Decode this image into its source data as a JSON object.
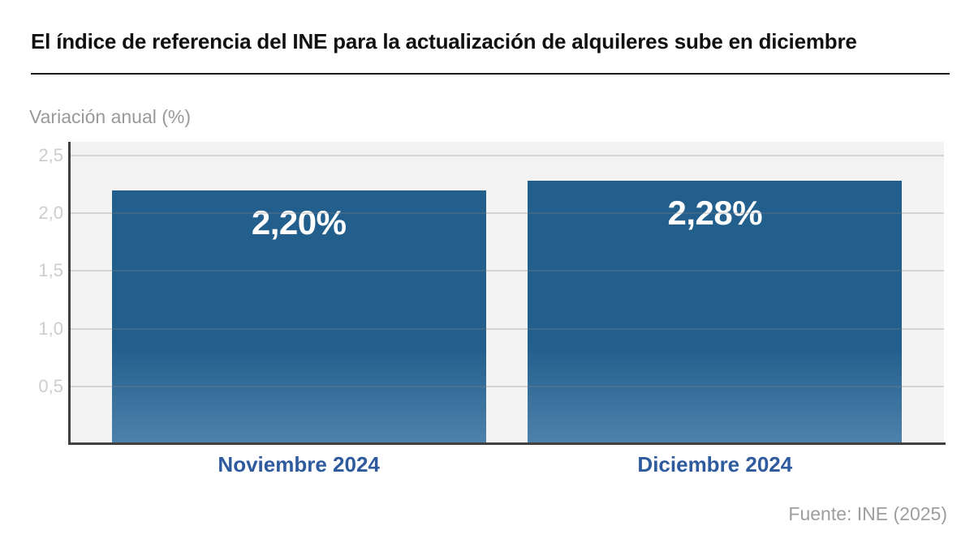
{
  "title": "El índice de referencia del INE para la actualización de alquileres sube en diciembre",
  "subtitle": "Variación anual (%)",
  "source": "Fuente: INE (2025)",
  "chart_data": {
    "type": "bar",
    "categories": [
      "Noviembre 2024",
      "Diciembre 2024"
    ],
    "values": [
      2.2,
      2.28
    ],
    "value_labels": [
      "2,20%",
      "2,28%"
    ],
    "title": "El índice de referencia del INE para la actualización de alquileres sube en diciembre",
    "xlabel": "",
    "ylabel": "Variación anual (%)",
    "ylim": [
      0,
      2.62
    ],
    "yticks": [
      0.5,
      1.0,
      1.5,
      2.0,
      2.5
    ],
    "ytick_labels": [
      "0,5",
      "1,0",
      "1,5",
      "2,0",
      "2,5"
    ],
    "grid": true,
    "legend": false,
    "source": "Fuente: INE (2025)",
    "colors": {
      "bar": "#235f8d",
      "bar_fade_bottom": "#4e82ab",
      "category_label": "#2e5a9e",
      "title": "#111111",
      "rule": "#1a1a1a",
      "subtitle": "#999999",
      "source": "#9e9e9e",
      "tick_label": "#cdcdcd",
      "plot_background": "#f3f3f3",
      "axis": "#404040",
      "gridline": "rgba(128,128,128,0.28)"
    }
  }
}
